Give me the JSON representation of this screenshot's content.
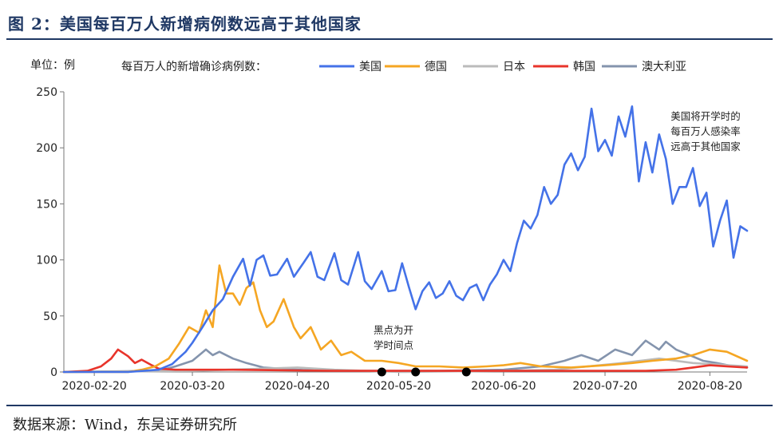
{
  "figure": {
    "title": "图 2：美国每百万人新增病例数远高于其他国家",
    "source": "数据来源：Wind，东吴证券研究所"
  },
  "chart_data": {
    "type": "line",
    "unit_label": "单位：例",
    "legend_title": "每百万人的新增确诊病例数：",
    "legend_position": "top",
    "xlim": [
      "2020-02-11",
      "2020-08-31"
    ],
    "ylim": [
      0,
      250
    ],
    "y_ticks": [
      0,
      50,
      100,
      150,
      200,
      250
    ],
    "x_ticks": [
      "2020-02-20",
      "2020-03-20",
      "2020-04-20",
      "2020-05-20",
      "2020-06-20",
      "2020-07-20",
      "2020-08-20"
    ],
    "grid": false,
    "annotations": [
      {
        "id": "us-note",
        "lines": [
          "美国将开学时的",
          "每百万人感染率",
          "远高于其他国家"
        ]
      },
      {
        "id": "school-note",
        "lines": [
          "黑点为开",
          "学时间点"
        ]
      }
    ],
    "school_opening_points": [
      {
        "x": "2020-05-15",
        "y": 0
      },
      {
        "x": "2020-05-25",
        "y": 0
      },
      {
        "x": "2020-06-09",
        "y": 0
      }
    ],
    "series": [
      {
        "name": "美国",
        "color": "#4472e8",
        "points": [
          [
            "2020-02-11",
            0
          ],
          [
            "2020-03-01",
            0
          ],
          [
            "2020-03-10",
            2
          ],
          [
            "2020-03-14",
            7
          ],
          [
            "2020-03-18",
            18
          ],
          [
            "2020-03-20",
            26
          ],
          [
            "2020-03-23",
            40
          ],
          [
            "2020-03-26",
            55
          ],
          [
            "2020-03-29",
            65
          ],
          [
            "2020-04-01",
            85
          ],
          [
            "2020-04-04",
            101
          ],
          [
            "2020-04-06",
            77
          ],
          [
            "2020-04-08",
            100
          ],
          [
            "2020-04-10",
            104
          ],
          [
            "2020-04-12",
            86
          ],
          [
            "2020-04-14",
            87
          ],
          [
            "2020-04-17",
            101
          ],
          [
            "2020-04-19",
            85
          ],
          [
            "2020-04-22",
            98
          ],
          [
            "2020-04-24",
            107
          ],
          [
            "2020-04-26",
            85
          ],
          [
            "2020-04-28",
            82
          ],
          [
            "2020-05-01",
            106
          ],
          [
            "2020-05-03",
            82
          ],
          [
            "2020-05-05",
            78
          ],
          [
            "2020-05-08",
            107
          ],
          [
            "2020-05-10",
            81
          ],
          [
            "2020-05-12",
            74
          ],
          [
            "2020-05-15",
            90
          ],
          [
            "2020-05-17",
            72
          ],
          [
            "2020-05-19",
            73
          ],
          [
            "2020-05-21",
            97
          ],
          [
            "2020-05-23",
            76
          ],
          [
            "2020-05-25",
            56
          ],
          [
            "2020-05-27",
            72
          ],
          [
            "2020-05-29",
            80
          ],
          [
            "2020-05-31",
            66
          ],
          [
            "2020-06-02",
            70
          ],
          [
            "2020-06-04",
            81
          ],
          [
            "2020-06-06",
            68
          ],
          [
            "2020-06-08",
            64
          ],
          [
            "2020-06-10",
            75
          ],
          [
            "2020-06-12",
            78
          ],
          [
            "2020-06-14",
            64
          ],
          [
            "2020-06-16",
            78
          ],
          [
            "2020-06-18",
            87
          ],
          [
            "2020-06-20",
            100
          ],
          [
            "2020-06-22",
            90
          ],
          [
            "2020-06-24",
            115
          ],
          [
            "2020-06-26",
            135
          ],
          [
            "2020-06-28",
            128
          ],
          [
            "2020-06-30",
            140
          ],
          [
            "2020-07-02",
            165
          ],
          [
            "2020-07-04",
            150
          ],
          [
            "2020-07-06",
            158
          ],
          [
            "2020-07-08",
            185
          ],
          [
            "2020-07-10",
            195
          ],
          [
            "2020-07-12",
            180
          ],
          [
            "2020-07-14",
            192
          ],
          [
            "2020-07-16",
            235
          ],
          [
            "2020-07-18",
            197
          ],
          [
            "2020-07-20",
            207
          ],
          [
            "2020-07-22",
            193
          ],
          [
            "2020-07-24",
            228
          ],
          [
            "2020-07-26",
            210
          ],
          [
            "2020-07-28",
            237
          ],
          [
            "2020-07-30",
            170
          ],
          [
            "2020-08-01",
            205
          ],
          [
            "2020-08-03",
            178
          ],
          [
            "2020-08-05",
            212
          ],
          [
            "2020-08-07",
            190
          ],
          [
            "2020-08-09",
            150
          ],
          [
            "2020-08-11",
            165
          ],
          [
            "2020-08-13",
            165
          ],
          [
            "2020-08-15",
            182
          ],
          [
            "2020-08-17",
            148
          ],
          [
            "2020-08-19",
            160
          ],
          [
            "2020-08-21",
            112
          ],
          [
            "2020-08-23",
            135
          ],
          [
            "2020-08-25",
            153
          ],
          [
            "2020-08-27",
            102
          ],
          [
            "2020-08-29",
            130
          ],
          [
            "2020-08-31",
            126
          ]
        ]
      },
      {
        "name": "德国",
        "color": "#f5a623",
        "points": [
          [
            "2020-02-11",
            0
          ],
          [
            "2020-03-01",
            0
          ],
          [
            "2020-03-05",
            2
          ],
          [
            "2020-03-09",
            5
          ],
          [
            "2020-03-13",
            12
          ],
          [
            "2020-03-16",
            25
          ],
          [
            "2020-03-19",
            40
          ],
          [
            "2020-03-22",
            35
          ],
          [
            "2020-03-24",
            55
          ],
          [
            "2020-03-26",
            40
          ],
          [
            "2020-03-28",
            95
          ],
          [
            "2020-03-30",
            70
          ],
          [
            "2020-04-01",
            70
          ],
          [
            "2020-04-03",
            60
          ],
          [
            "2020-04-05",
            75
          ],
          [
            "2020-04-07",
            80
          ],
          [
            "2020-04-09",
            55
          ],
          [
            "2020-04-11",
            40
          ],
          [
            "2020-04-13",
            45
          ],
          [
            "2020-04-16",
            65
          ],
          [
            "2020-04-19",
            40
          ],
          [
            "2020-04-21",
            30
          ],
          [
            "2020-04-24",
            40
          ],
          [
            "2020-04-27",
            20
          ],
          [
            "2020-04-30",
            28
          ],
          [
            "2020-05-03",
            15
          ],
          [
            "2020-05-06",
            18
          ],
          [
            "2020-05-10",
            10
          ],
          [
            "2020-05-15",
            10
          ],
          [
            "2020-05-20",
            8
          ],
          [
            "2020-05-25",
            5
          ],
          [
            "2020-06-01",
            5
          ],
          [
            "2020-06-08",
            4
          ],
          [
            "2020-06-15",
            5
          ],
          [
            "2020-06-20",
            6
          ],
          [
            "2020-06-25",
            8
          ],
          [
            "2020-07-01",
            5
          ],
          [
            "2020-07-10",
            4
          ],
          [
            "2020-07-20",
            6
          ],
          [
            "2020-07-28",
            8
          ],
          [
            "2020-08-03",
            10
          ],
          [
            "2020-08-10",
            12
          ],
          [
            "2020-08-15",
            15
          ],
          [
            "2020-08-20",
            20
          ],
          [
            "2020-08-25",
            18
          ],
          [
            "2020-08-31",
            10
          ]
        ]
      },
      {
        "name": "日本",
        "color": "#bbbbbb",
        "points": [
          [
            "2020-02-11",
            0
          ],
          [
            "2020-03-20",
            1
          ],
          [
            "2020-04-10",
            3
          ],
          [
            "2020-04-20",
            4
          ],
          [
            "2020-05-01",
            2
          ],
          [
            "2020-05-20",
            0
          ],
          [
            "2020-06-20",
            1
          ],
          [
            "2020-07-05",
            2
          ],
          [
            "2020-07-15",
            5
          ],
          [
            "2020-07-25",
            8
          ],
          [
            "2020-08-05",
            12
          ],
          [
            "2020-08-15",
            8
          ],
          [
            "2020-08-31",
            5
          ]
        ]
      },
      {
        "name": "韩国",
        "color": "#e8342b",
        "points": [
          [
            "2020-02-11",
            0
          ],
          [
            "2020-02-18",
            1
          ],
          [
            "2020-02-22",
            5
          ],
          [
            "2020-02-25",
            12
          ],
          [
            "2020-02-27",
            20
          ],
          [
            "2020-03-01",
            14
          ],
          [
            "2020-03-03",
            8
          ],
          [
            "2020-03-05",
            11
          ],
          [
            "2020-03-08",
            6
          ],
          [
            "2020-03-10",
            3
          ],
          [
            "2020-03-15",
            2
          ],
          [
            "2020-04-01",
            2
          ],
          [
            "2020-05-01",
            1
          ],
          [
            "2020-06-01",
            1
          ],
          [
            "2020-07-01",
            1
          ],
          [
            "2020-08-01",
            1
          ],
          [
            "2020-08-10",
            2
          ],
          [
            "2020-08-15",
            4
          ],
          [
            "2020-08-20",
            6
          ],
          [
            "2020-08-25",
            5
          ],
          [
            "2020-08-31",
            4
          ]
        ]
      },
      {
        "name": "澳大利亚",
        "color": "#8494ad",
        "points": [
          [
            "2020-02-11",
            0
          ],
          [
            "2020-03-10",
            1
          ],
          [
            "2020-03-15",
            5
          ],
          [
            "2020-03-20",
            10
          ],
          [
            "2020-03-24",
            20
          ],
          [
            "2020-03-26",
            15
          ],
          [
            "2020-03-28",
            18
          ],
          [
            "2020-04-01",
            12
          ],
          [
            "2020-04-05",
            8
          ],
          [
            "2020-04-10",
            4
          ],
          [
            "2020-04-20",
            2
          ],
          [
            "2020-05-01",
            1
          ],
          [
            "2020-06-01",
            1
          ],
          [
            "2020-06-20",
            2
          ],
          [
            "2020-07-01",
            5
          ],
          [
            "2020-07-08",
            10
          ],
          [
            "2020-07-13",
            15
          ],
          [
            "2020-07-18",
            10
          ],
          [
            "2020-07-23",
            20
          ],
          [
            "2020-07-28",
            15
          ],
          [
            "2020-08-01",
            28
          ],
          [
            "2020-08-05",
            20
          ],
          [
            "2020-08-07",
            27
          ],
          [
            "2020-08-10",
            20
          ],
          [
            "2020-08-14",
            15
          ],
          [
            "2020-08-18",
            10
          ],
          [
            "2020-08-22",
            8
          ],
          [
            "2020-08-27",
            5
          ],
          [
            "2020-08-31",
            4
          ]
        ]
      }
    ]
  }
}
